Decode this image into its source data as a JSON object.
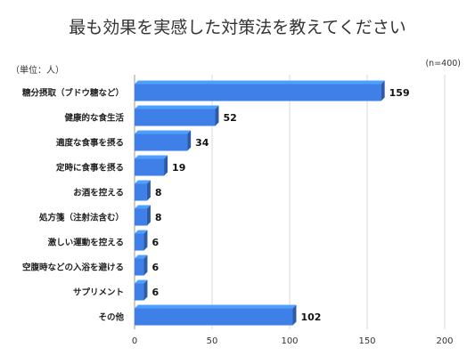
{
  "chart_data": {
    "type": "bar",
    "orientation": "horizontal",
    "title": "最も効果を実感した対策法を教えてください",
    "unit_label": "（単位：人）",
    "sample_size": "(n=400)",
    "categories": [
      "糖分摂取（ブドウ糖など）",
      "健康的な食生活",
      "適度な食事を摂る",
      "定時に食事を摂る",
      "お酒を控える",
      "処方箋（注射法含む）",
      "激しい運動を控える",
      "空腹時などの入浴を避ける",
      "サプリメント",
      "その他"
    ],
    "values": [
      159,
      52,
      34,
      19,
      8,
      8,
      6,
      6,
      6,
      102
    ],
    "xlim": [
      0,
      200
    ],
    "xticks": [
      "0",
      "50",
      "100",
      "150",
      "200"
    ],
    "grid": true,
    "bar_color": "#3f7fe8"
  }
}
